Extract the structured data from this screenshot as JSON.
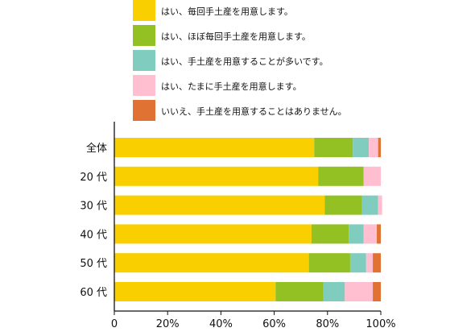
{
  "chart_data": {
    "type": "bar",
    "orientation": "horizontal",
    "stacked": true,
    "categories": [
      "全体",
      "20 代",
      "30 代",
      "40 代",
      "50 代",
      "60 代"
    ],
    "series": [
      {
        "name": "はい、毎回手土産を用意します。",
        "color": "#f9cf00",
        "values": [
          75,
          76.5,
          79,
          74,
          73,
          60.5
        ]
      },
      {
        "name": "はい、ほぼ毎回手土産を用意します。",
        "color": "#93c123",
        "values": [
          14.5,
          17,
          14,
          14,
          15.5,
          18
        ]
      },
      {
        "name": "はい、手土産を用意することが多いです。",
        "color": "#80ccbf",
        "values": [
          6,
          0,
          6,
          5.5,
          6,
          8
        ]
      },
      {
        "name": "はい、たまに手土産を用意します。",
        "color": "#ffbfd0",
        "values": [
          3.5,
          6.5,
          1.5,
          5,
          2.5,
          10.5
        ]
      },
      {
        "name": "いいえ、手土産を用意することはありません。",
        "color": "#e07334",
        "values": [
          1,
          0,
          0,
          1.5,
          3,
          3
        ]
      }
    ],
    "x_ticks": [
      "0",
      "20%",
      "40%",
      "60%",
      "80%",
      "100%"
    ],
    "xlim": [
      0,
      100
    ],
    "legend_position": "top",
    "grid": false
  }
}
